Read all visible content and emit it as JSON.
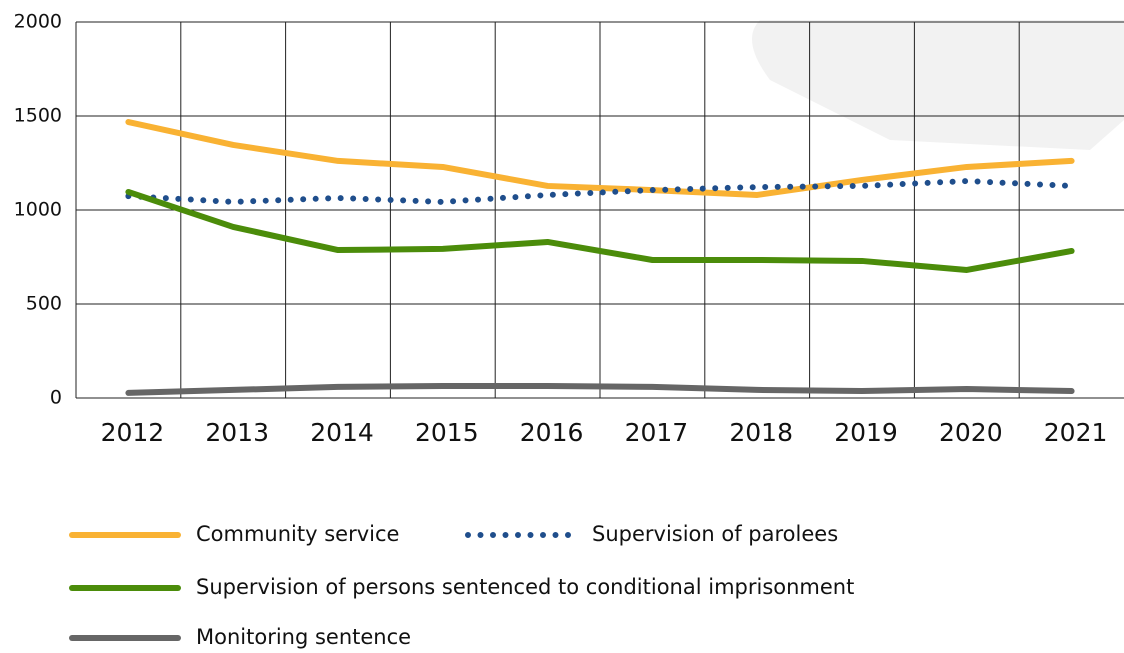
{
  "chart_data": {
    "type": "line",
    "categories": [
      "2012",
      "2013",
      "2014",
      "2015",
      "2016",
      "2017",
      "2018",
      "2019",
      "2020",
      "2021"
    ],
    "series": [
      {
        "name": "Community service",
        "color": "#f9b233",
        "values": [
          1468,
          1346,
          1261,
          1229,
          1128,
          1106,
          1080,
          1160,
          1229,
          1261
        ]
      },
      {
        "name": "Supervision of parolees",
        "color": "#1f4e8c",
        "dotted": true,
        "values": [
          1074,
          1043,
          1064,
          1043,
          1080,
          1106,
          1122,
          1128,
          1154,
          1128
        ]
      },
      {
        "name": "Supervision of persons sentenced to conditional imprisonment",
        "color": "#4b8c0a",
        "values": [
          1096,
          910,
          787,
          793,
          830,
          734,
          734,
          729,
          681,
          782
        ]
      },
      {
        "name": "Monitoring sentence",
        "color": "#666666",
        "values": [
          27,
          43,
          59,
          64,
          64,
          59,
          43,
          37,
          48,
          37
        ]
      }
    ],
    "ylim": [
      0,
      2000
    ],
    "yticks": [
      0,
      500,
      1000,
      1500,
      2000
    ],
    "grid": true
  }
}
